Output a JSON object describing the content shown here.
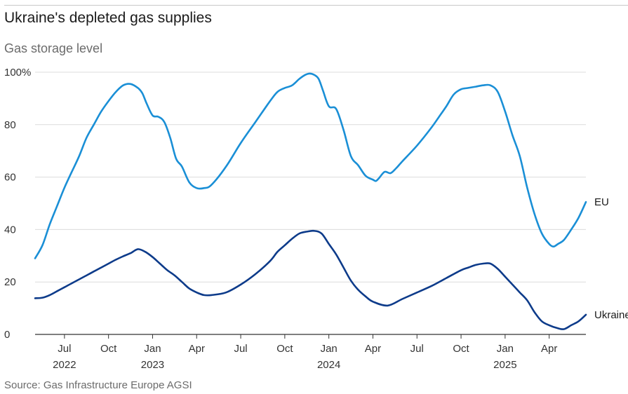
{
  "title": "Ukraine's depleted gas supplies",
  "subtitle": "Gas storage level",
  "source": "Source: Gas Infrastructure Europe AGSI",
  "colors": {
    "eu": "#1a8fd6",
    "ukraine": "#0d3b8a",
    "grid": "#dcdcdc",
    "axis": "#333333"
  },
  "chart_data": {
    "type": "line",
    "title": "Ukraine's depleted gas supplies",
    "subtitle": "Gas storage level",
    "xlabel": "",
    "ylabel": "",
    "x_unit": "months since Jan 2022",
    "xlim": [
      4.0,
      41.5
    ],
    "ylim": [
      0,
      100
    ],
    "y_ticks": [
      0,
      20,
      40,
      60,
      80,
      100
    ],
    "y_tick_labels": [
      "0",
      "20",
      "40",
      "60",
      "80",
      "100%"
    ],
    "x_ticks": [
      6,
      9,
      12,
      15,
      18,
      21,
      24,
      27,
      30,
      33,
      36,
      39
    ],
    "x_tick_labels": [
      "Jul",
      "Oct",
      "Jan",
      "Apr",
      "Jul",
      "Oct",
      "Jan",
      "Apr",
      "Jul",
      "Oct",
      "Jan",
      "Apr"
    ],
    "year_labels": [
      {
        "x": 6,
        "label": "2022"
      },
      {
        "x": 12,
        "label": "2023"
      },
      {
        "x": 24,
        "label": "2024"
      },
      {
        "x": 36,
        "label": "2025"
      }
    ],
    "grid": true,
    "series": [
      {
        "name": "EU",
        "x": [
          4.0,
          4.5,
          5.0,
          5.5,
          6.0,
          6.5,
          7.0,
          7.5,
          8.0,
          8.5,
          9.0,
          9.5,
          10.0,
          10.5,
          11.0,
          11.3,
          11.6,
          12.0,
          12.4,
          12.8,
          13.2,
          13.6,
          14.0,
          14.5,
          15.0,
          15.5,
          16.0,
          17.0,
          18.0,
          19.0,
          20.0,
          20.5,
          21.0,
          21.5,
          22.0,
          22.4,
          22.7,
          23.0,
          23.3,
          23.6,
          24.0,
          24.5,
          25.0,
          25.5,
          26.0,
          26.5,
          27.0,
          27.2,
          27.4,
          27.8,
          28.2,
          28.6,
          29.0,
          30.0,
          31.0,
          31.5,
          32.0,
          32.5,
          33.0,
          33.5,
          34.0,
          34.5,
          35.0,
          35.5,
          36.0,
          36.5,
          37.0,
          37.5,
          38.0,
          38.5,
          39.0,
          39.3,
          39.6,
          40.0,
          40.5,
          41.0,
          41.5
        ],
        "values": [
          29,
          34,
          42,
          49,
          56,
          62,
          68,
          75,
          80,
          85,
          89,
          92.5,
          95,
          95.5,
          94,
          92,
          88,
          83.5,
          83,
          81,
          75,
          67,
          64,
          58,
          55.8,
          55.8,
          57,
          64,
          73,
          81,
          89,
          92.5,
          94,
          95,
          97.5,
          99,
          99.5,
          99,
          97.5,
          93,
          87,
          86,
          78,
          68,
          64.5,
          60.5,
          59,
          58.5,
          59.5,
          62,
          61.5,
          63.5,
          66,
          72,
          79,
          83,
          87,
          91.5,
          93.5,
          94,
          94.5,
          95,
          95,
          92.5,
          85,
          76,
          68,
          56,
          46,
          38.5,
          34.5,
          33.5,
          34.5,
          36,
          40,
          44.5,
          50.5
        ]
      },
      {
        "name": "Ukraine",
        "x": [
          4.0,
          4.5,
          5.0,
          5.5,
          6.0,
          6.5,
          7.0,
          7.5,
          8.0,
          8.5,
          9.0,
          9.5,
          10.0,
          10.5,
          11.0,
          11.5,
          12.0,
          12.5,
          13.0,
          13.5,
          14.0,
          14.5,
          15.0,
          15.5,
          16.0,
          17.0,
          18.0,
          19.0,
          20.0,
          20.5,
          21.0,
          21.5,
          22.0,
          22.5,
          23.0,
          23.5,
          24.0,
          24.5,
          25.0,
          25.5,
          26.0,
          26.5,
          27.0,
          28.0,
          29.0,
          30.0,
          31.0,
          32.0,
          33.0,
          33.5,
          34.0,
          34.5,
          35.0,
          35.5,
          36.0,
          36.5,
          37.0,
          37.5,
          38.0,
          38.5,
          39.0,
          39.5,
          40.0,
          40.5,
          41.0,
          41.5
        ],
        "values": [
          13.8,
          14,
          15,
          16.5,
          18,
          19.5,
          21,
          22.5,
          24,
          25.5,
          27,
          28.5,
          29.8,
          31,
          32.5,
          31.5,
          29.5,
          27,
          24.5,
          22.5,
          20,
          17.5,
          16,
          15,
          15,
          16,
          19,
          23,
          28,
          31.5,
          34,
          36.5,
          38.5,
          39.2,
          39.5,
          38.5,
          34.5,
          30.5,
          25.5,
          20.5,
          17,
          14.5,
          12.5,
          11,
          13.5,
          16,
          18.5,
          21.5,
          24.5,
          25.5,
          26.5,
          27,
          27,
          25,
          22,
          19,
          16,
          13,
          8.5,
          5,
          3.5,
          2.5,
          2,
          3.5,
          5,
          7.5
        ]
      }
    ],
    "annotations": [
      {
        "series": "EU",
        "label": "EU",
        "position": "right end of line"
      },
      {
        "series": "Ukraine",
        "label": "Ukraine",
        "position": "right end of line"
      }
    ]
  }
}
